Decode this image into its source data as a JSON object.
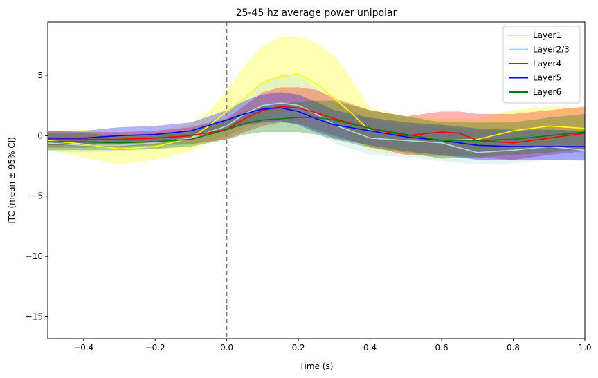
{
  "chart_data": {
    "type": "line",
    "title": "25-45 hz average power unipolar",
    "xlabel": "Time (s)",
    "ylabel": "ITC (mean ± 95% CI)",
    "xlim": [
      -0.5,
      1.0
    ],
    "ylim": [
      -16.8,
      9.4
    ],
    "xticks": [
      -0.4,
      -0.2,
      0.0,
      0.2,
      0.4,
      0.6,
      0.8,
      1.0
    ],
    "xtick_labels": [
      "−0.4",
      "−0.2",
      "0.0",
      "0.2",
      "0.4",
      "0.6",
      "0.8",
      "1.0"
    ],
    "yticks": [
      -15,
      -10,
      -5,
      0,
      5
    ],
    "ytick_labels": [
      "−15",
      "−10",
      "−5",
      "0",
      "5"
    ],
    "grid": false,
    "legend_position": "top-right",
    "vline": {
      "x": 0.0,
      "style": "dashed",
      "color": "#808080"
    },
    "series": [
      {
        "name": "Layer1",
        "color": "#ffff00",
        "x": [
          -0.5,
          -0.4,
          -0.3,
          -0.2,
          -0.1,
          -0.05,
          0.0,
          0.05,
          0.1,
          0.15,
          0.2,
          0.25,
          0.3,
          0.35,
          0.4,
          0.5,
          0.6,
          0.7,
          0.8,
          0.9,
          1.0
        ],
        "mean": [
          -0.4,
          -0.7,
          -1.1,
          -0.9,
          -0.2,
          0.8,
          2.0,
          3.1,
          4.4,
          4.9,
          5.1,
          4.3,
          3.1,
          1.8,
          0.4,
          -0.1,
          -0.4,
          -0.3,
          0.4,
          0.8,
          0.6
        ],
        "lower": [
          -1.2,
          -1.8,
          -2.4,
          -2.0,
          -1.3,
          -0.5,
          0.0,
          0.6,
          1.3,
          1.9,
          2.3,
          1.9,
          1.1,
          0.0,
          -1.3,
          -1.6,
          -1.8,
          -1.6,
          -1.2,
          -0.6,
          -0.8
        ],
        "upper": [
          0.4,
          0.5,
          0.2,
          0.3,
          1.0,
          2.0,
          3.7,
          5.8,
          7.4,
          8.2,
          8.2,
          7.7,
          6.6,
          4.6,
          2.3,
          1.6,
          1.4,
          1.4,
          2.1,
          2.4,
          2.3
        ]
      },
      {
        "name": "Layer2/3",
        "color": "#add8e6",
        "x": [
          -0.5,
          -0.4,
          -0.3,
          -0.2,
          -0.1,
          0.0,
          0.05,
          0.1,
          0.15,
          0.2,
          0.25,
          0.3,
          0.4,
          0.5,
          0.6,
          0.7,
          0.8,
          0.9,
          1.0
        ],
        "mean": [
          -0.6,
          -0.8,
          -0.8,
          -0.6,
          -0.2,
          0.8,
          1.8,
          2.5,
          2.7,
          2.5,
          1.8,
          0.9,
          -0.2,
          -0.4,
          -0.6,
          -1.4,
          -1.2,
          -0.9,
          -1.2
        ],
        "lower": [
          -1.3,
          -1.4,
          -1.3,
          -1.1,
          -0.8,
          0.0,
          0.7,
          1.0,
          1.2,
          0.9,
          0.2,
          -0.6,
          -1.6,
          -1.8,
          -2.1,
          -2.4,
          -2.3,
          -2.0,
          -2.1
        ],
        "upper": [
          0.1,
          -0.1,
          -0.2,
          0.0,
          0.5,
          1.8,
          3.2,
          4.5,
          5.0,
          5.0,
          4.0,
          2.8,
          1.3,
          0.8,
          0.7,
          0.3,
          0.4,
          0.5,
          0.4
        ]
      },
      {
        "name": "Layer4",
        "color": "#ff0000",
        "x": [
          -0.5,
          -0.4,
          -0.3,
          -0.2,
          -0.1,
          0.0,
          0.05,
          0.1,
          0.15,
          0.2,
          0.25,
          0.3,
          0.4,
          0.5,
          0.6,
          0.65,
          0.7,
          0.8,
          0.9,
          1.0
        ],
        "mean": [
          -0.3,
          -0.3,
          -0.3,
          -0.2,
          0.0,
          0.5,
          1.4,
          2.1,
          2.4,
          2.3,
          1.9,
          1.4,
          0.6,
          0.0,
          0.3,
          0.2,
          -0.4,
          -0.6,
          -0.2,
          0.2
        ],
        "lower": [
          -1.0,
          -1.0,
          -0.9,
          -0.8,
          -0.7,
          -0.3,
          0.3,
          0.8,
          1.1,
          1.0,
          0.5,
          0.0,
          -0.9,
          -1.6,
          -1.7,
          -1.7,
          -1.8,
          -2.0,
          -1.6,
          -1.3
        ],
        "upper": [
          0.4,
          0.3,
          0.3,
          0.4,
          0.7,
          1.4,
          2.5,
          3.6,
          4.0,
          4.0,
          3.8,
          3.1,
          2.1,
          1.6,
          2.0,
          2.0,
          1.8,
          1.8,
          2.1,
          2.4
        ]
      },
      {
        "name": "Layer5",
        "color": "#0000ff",
        "x": [
          -0.5,
          -0.4,
          -0.3,
          -0.2,
          -0.1,
          0.0,
          0.05,
          0.1,
          0.15,
          0.2,
          0.25,
          0.3,
          0.4,
          0.5,
          0.6,
          0.7,
          0.8,
          0.9,
          1.0
        ],
        "mean": [
          -0.2,
          -0.2,
          0.0,
          0.1,
          0.4,
          1.3,
          1.8,
          2.2,
          2.3,
          2.0,
          1.4,
          0.9,
          0.4,
          -0.1,
          -0.4,
          -0.8,
          -0.9,
          -0.9,
          -0.9
        ],
        "lower": [
          -0.8,
          -0.8,
          -0.6,
          -0.5,
          -0.2,
          0.5,
          0.9,
          1.1,
          1.2,
          0.9,
          0.3,
          -0.2,
          -0.8,
          -1.3,
          -1.6,
          -2.0,
          -2.0,
          -2.0,
          -2.0
        ],
        "upper": [
          0.4,
          0.4,
          0.7,
          0.8,
          1.1,
          2.1,
          2.9,
          3.4,
          3.6,
          3.4,
          2.8,
          2.1,
          1.5,
          1.1,
          0.9,
          0.6,
          0.5,
          0.5,
          0.4
        ]
      },
      {
        "name": "Layer6",
        "color": "#008000",
        "x": [
          -0.5,
          -0.4,
          -0.3,
          -0.2,
          -0.1,
          0.0,
          0.05,
          0.1,
          0.15,
          0.2,
          0.25,
          0.3,
          0.4,
          0.5,
          0.6,
          0.7,
          0.8,
          0.9,
          1.0
        ],
        "mean": [
          -0.5,
          -0.5,
          -0.6,
          -0.5,
          -0.3,
          0.5,
          1.0,
          1.3,
          1.4,
          1.5,
          1.5,
          1.3,
          0.6,
          0.1,
          -0.4,
          -0.4,
          -0.3,
          0.0,
          0.3
        ],
        "lower": [
          -1.2,
          -1.2,
          -1.2,
          -1.1,
          -0.9,
          -0.3,
          0.1,
          0.3,
          0.3,
          0.3,
          0.1,
          -0.3,
          -1.0,
          -1.4,
          -1.9,
          -1.8,
          -1.6,
          -1.4,
          -1.1
        ],
        "upper": [
          0.2,
          0.2,
          0.0,
          0.1,
          0.3,
          1.3,
          2.0,
          2.4,
          2.6,
          2.8,
          2.9,
          2.9,
          2.1,
          1.6,
          1.1,
          1.1,
          1.1,
          1.5,
          1.8
        ]
      }
    ]
  }
}
